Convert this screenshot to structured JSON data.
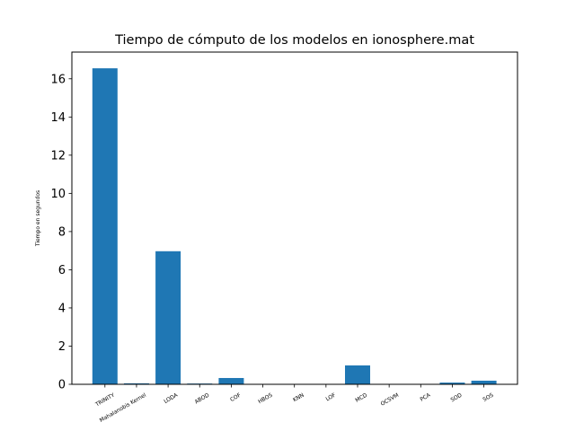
{
  "chart_data": {
    "type": "bar",
    "title": "Tiempo de cómputo de los modelos en ionosphere.mat",
    "xlabel": "",
    "ylabel": "Tiempo en segundos",
    "categories": [
      "TRINITY",
      "Mahalanobis Kernel",
      "LODA",
      "ABOD",
      "COF",
      "HBOS",
      "KNN",
      "LOF",
      "MCD",
      "OCSVM",
      "PCA",
      "SOD",
      "SOS"
    ],
    "values": [
      16.55,
      0.05,
      6.97,
      0.04,
      0.33,
      0.005,
      0.005,
      0.005,
      0.99,
      0.005,
      0.005,
      0.09,
      0.19
    ],
    "ylim": [
      0,
      17.4
    ],
    "yticks": [
      "0",
      "2",
      "4",
      "6",
      "8",
      "10",
      "12",
      "14",
      "16"
    ],
    "grid": false,
    "bar_color": "#1f77b4"
  }
}
